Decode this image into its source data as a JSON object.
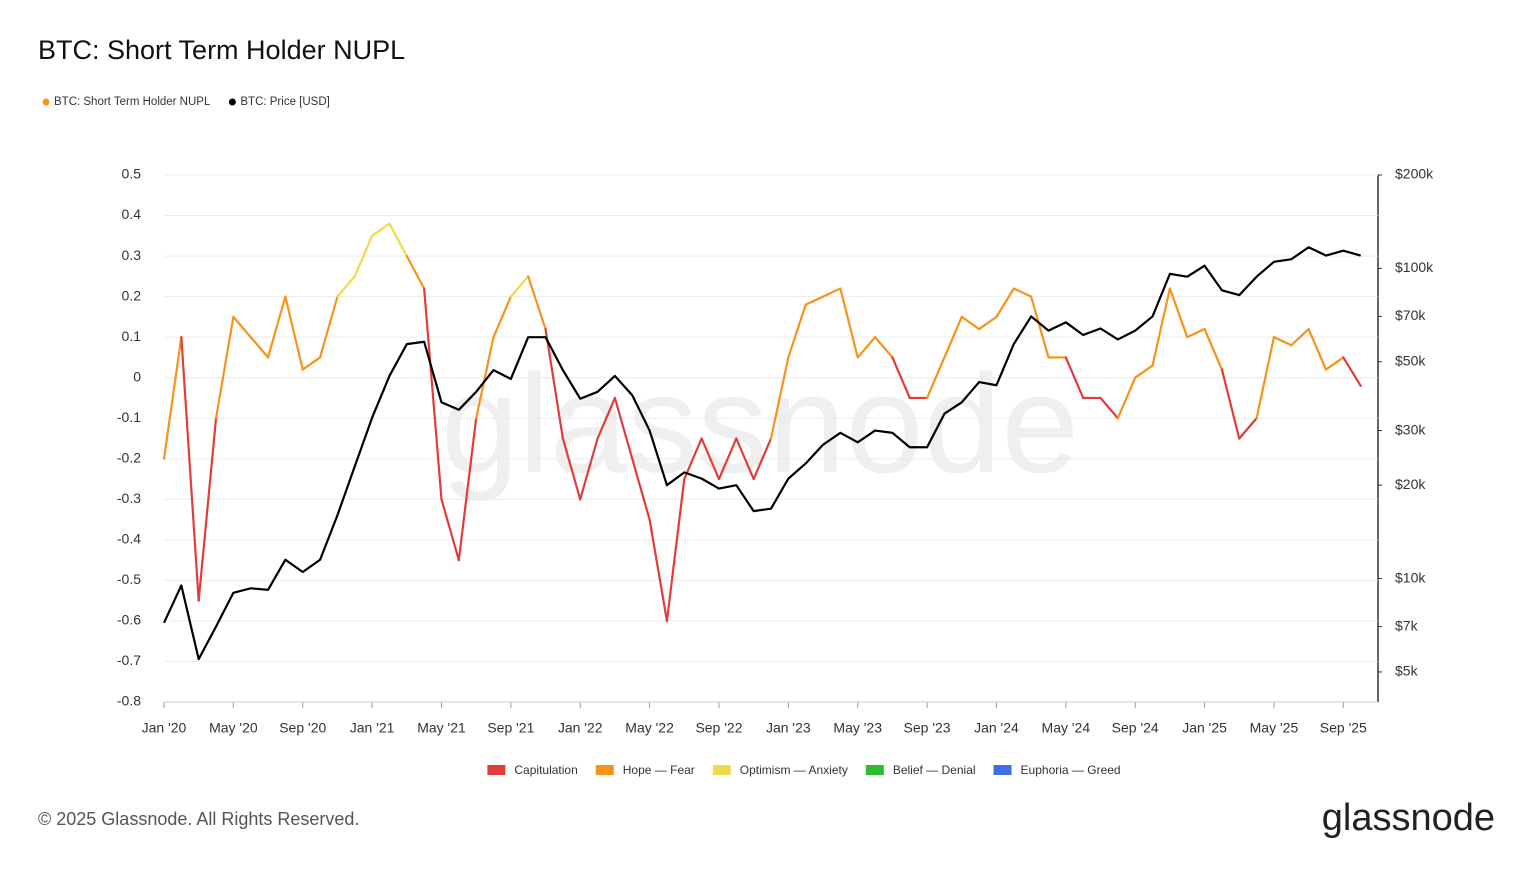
{
  "chart_data": {
    "type": "line",
    "title": "BTC: Short Term Holder NUPL",
    "watermark": "glassnode",
    "footer": "© 2025 Glassnode. All Rights Reserved.",
    "brand": "glassnode",
    "x": [
      "2020-01",
      "2020-02",
      "2020-03",
      "2020-04",
      "2020-05",
      "2020-06",
      "2020-07",
      "2020-08",
      "2020-09",
      "2020-10",
      "2020-11",
      "2020-12",
      "2021-01",
      "2021-02",
      "2021-03",
      "2021-04",
      "2021-05",
      "2021-06",
      "2021-07",
      "2021-08",
      "2021-09",
      "2021-10",
      "2021-11",
      "2021-12",
      "2022-01",
      "2022-02",
      "2022-03",
      "2022-04",
      "2022-05",
      "2022-06",
      "2022-07",
      "2022-08",
      "2022-09",
      "2022-10",
      "2022-11",
      "2022-12",
      "2023-01",
      "2023-02",
      "2023-03",
      "2023-04",
      "2023-05",
      "2023-06",
      "2023-07",
      "2023-08",
      "2023-09",
      "2023-10",
      "2023-11",
      "2023-12",
      "2024-01",
      "2024-02",
      "2024-03",
      "2024-04",
      "2024-05",
      "2024-06",
      "2024-07",
      "2024-08",
      "2024-09",
      "2024-10",
      "2024-11",
      "2024-12",
      "2025-01",
      "2025-02",
      "2025-03",
      "2025-04",
      "2025-05",
      "2025-06",
      "2025-07",
      "2025-08",
      "2025-09",
      "2025-10"
    ],
    "xlim": [
      "2020-01",
      "2025-11"
    ],
    "xticks": [
      {
        "value": "2020-01",
        "label": "Jan '20"
      },
      {
        "value": "2020-05",
        "label": "May '20"
      },
      {
        "value": "2020-09",
        "label": "Sep '20"
      },
      {
        "value": "2021-01",
        "label": "Jan '21"
      },
      {
        "value": "2021-05",
        "label": "May '21"
      },
      {
        "value": "2021-09",
        "label": "Sep '21"
      },
      {
        "value": "2022-01",
        "label": "Jan '22"
      },
      {
        "value": "2022-05",
        "label": "May '22"
      },
      {
        "value": "2022-09",
        "label": "Sep '22"
      },
      {
        "value": "2023-01",
        "label": "Jan '23"
      },
      {
        "value": "2023-05",
        "label": "May '23"
      },
      {
        "value": "2023-09",
        "label": "Sep '23"
      },
      {
        "value": "2024-01",
        "label": "Jan '24"
      },
      {
        "value": "2024-05",
        "label": "May '24"
      },
      {
        "value": "2024-09",
        "label": "Sep '24"
      },
      {
        "value": "2025-01",
        "label": "Jan '25"
      },
      {
        "value": "2025-05",
        "label": "May '25"
      },
      {
        "value": "2025-09",
        "label": "Sep '25"
      }
    ],
    "ylim": [
      -0.8,
      0.5
    ],
    "yticks": [
      0.5,
      0.4,
      0.3,
      0.2,
      0.1,
      0,
      -0.1,
      -0.2,
      -0.3,
      -0.4,
      -0.5,
      -0.6,
      -0.7,
      -0.8
    ],
    "y2lim": [
      4000,
      200000
    ],
    "y2log": true,
    "y2ticks": [
      {
        "value": 200000,
        "label": "$200k"
      },
      {
        "value": 100000,
        "label": "$100k"
      },
      {
        "value": 70000,
        "label": "$70k"
      },
      {
        "value": 50000,
        "label": "$50k"
      },
      {
        "value": 30000,
        "label": "$30k"
      },
      {
        "value": 20000,
        "label": "$20k"
      },
      {
        "value": 10000,
        "label": "$10k"
      },
      {
        "value": 7000,
        "label": "$7k"
      },
      {
        "value": 5000,
        "label": "$5k"
      }
    ],
    "grid": true,
    "series": [
      {
        "name": "BTC: Short Term Holder NUPL",
        "color": "#f7931a",
        "values": [
          -0.2,
          0.1,
          -0.55,
          -0.1,
          0.15,
          0.1,
          0.05,
          0.2,
          0.02,
          0.05,
          0.2,
          0.25,
          0.35,
          0.38,
          0.3,
          0.22,
          -0.3,
          -0.45,
          -0.1,
          0.1,
          0.2,
          0.25,
          0.12,
          -0.15,
          -0.3,
          -0.15,
          -0.05,
          -0.2,
          -0.35,
          -0.6,
          -0.25,
          -0.15,
          -0.25,
          -0.15,
          -0.25,
          -0.15,
          0.05,
          0.18,
          0.2,
          0.22,
          0.05,
          0.1,
          0.05,
          -0.05,
          -0.05,
          0.05,
          0.15,
          0.12,
          0.15,
          0.22,
          0.2,
          0.05,
          0.05,
          -0.05,
          -0.05,
          -0.1,
          0,
          0.03,
          0.22,
          0.1,
          0.12,
          0.02,
          -0.15,
          -0.1,
          0.1,
          0.08,
          0.12,
          0.02,
          0.05,
          -0.02
        ],
        "colors": [
          "#e03c3c",
          "#f7931a",
          "#e03c3c",
          "#e03c3c",
          "#f7931a",
          "#f7931a",
          "#f7931a",
          "#f7931a",
          "#f7931a",
          "#f7931a",
          "#f7931a",
          "#f0d94a",
          "#f0d94a",
          "#f0d94a",
          "#f0d94a",
          "#f7931a",
          "#e03c3c",
          "#e03c3c",
          "#e03c3c",
          "#f7931a",
          "#f7931a",
          "#f0d94a",
          "#f7931a",
          "#e03c3c",
          "#e03c3c",
          "#e03c3c",
          "#e03c3c",
          "#e03c3c",
          "#e03c3c",
          "#e03c3c",
          "#e03c3c",
          "#e03c3c",
          "#e03c3c",
          "#e03c3c",
          "#e03c3c",
          "#e03c3c",
          "#f7931a",
          "#f7931a",
          "#f7931a",
          "#f7931a",
          "#f7931a",
          "#f7931a",
          "#f7931a",
          "#e03c3c",
          "#e03c3c",
          "#f7931a",
          "#f7931a",
          "#f7931a",
          "#f7931a",
          "#f7931a",
          "#f7931a",
          "#f7931a",
          "#f7931a",
          "#e03c3c",
          "#e03c3c",
          "#e03c3c",
          "#f7931a",
          "#f7931a",
          "#f7931a",
          "#f7931a",
          "#f7931a",
          "#f7931a",
          "#e03c3c",
          "#e03c3c",
          "#f7931a",
          "#f7931a",
          "#f7931a",
          "#f7931a",
          "#f7931a",
          "#e03c3c"
        ]
      },
      {
        "name": "BTC: Price [USD]",
        "color": "#000000",
        "axis": "y2",
        "values": [
          7200,
          9500,
          5500,
          7000,
          9000,
          9300,
          9200,
          11500,
          10500,
          11500,
          16000,
          23000,
          33000,
          45000,
          57000,
          58000,
          37000,
          35000,
          40000,
          47000,
          44000,
          60000,
          60000,
          47000,
          38000,
          40000,
          45000,
          39000,
          30000,
          20000,
          22000,
          21000,
          19500,
          20000,
          16500,
          16800,
          21000,
          23500,
          27000,
          29500,
          27500,
          30000,
          29500,
          26500,
          26500,
          34000,
          37000,
          43000,
          42000,
          57000,
          70000,
          63000,
          67000,
          61000,
          64000,
          59000,
          63000,
          70000,
          96000,
          94000,
          102000,
          85000,
          82000,
          94000,
          105000,
          107000,
          117000,
          110000,
          114000,
          110000
        ]
      }
    ],
    "zones": [
      {
        "name": "Capitulation",
        "color": "#e03c3c"
      },
      {
        "name": "Hope — Fear",
        "color": "#f7931a"
      },
      {
        "name": "Optimism — Anxiety",
        "color": "#f0d94a"
      },
      {
        "name": "Belief — Denial",
        "color": "#2ebd2e"
      },
      {
        "name": "Euphoria — Greed",
        "color": "#3f6fe8"
      }
    ]
  }
}
